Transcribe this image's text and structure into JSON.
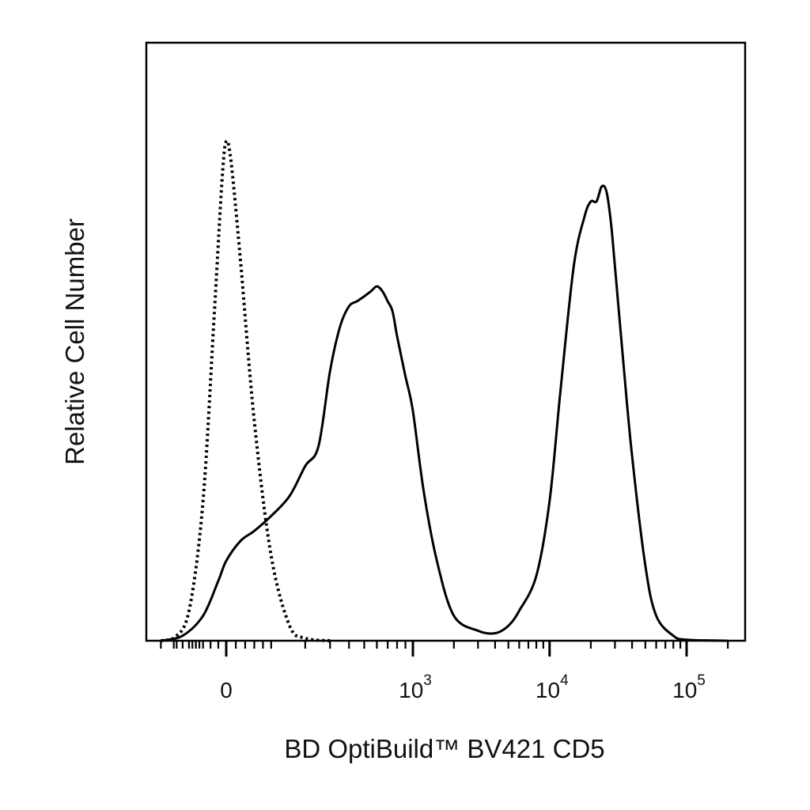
{
  "chart_data": {
    "type": "line",
    "title": "",
    "xlabel": "BD OptiBuild™ BV421 CD5",
    "ylabel": "Relative Cell Number",
    "x_scale": "biexponential",
    "x_tick_labels": [
      {
        "base": "0",
        "exp": "",
        "value": 0
      },
      {
        "base": "10",
        "exp": "3",
        "value": 1000
      },
      {
        "base": "10",
        "exp": "4",
        "value": 10000
      },
      {
        "base": "10",
        "exp": "5",
        "value": 100000
      }
    ],
    "xlim": [
      -300,
      250000
    ],
    "ylim": [
      0,
      100
    ],
    "grid": false,
    "legend": "none",
    "colors": {
      "axis": "#000000",
      "series": "#000000"
    },
    "series": [
      {
        "style": "dotted",
        "x": [
          -200,
          -150,
          -100,
          -60,
          -30,
          -10,
          0,
          10,
          30,
          60,
          100,
          150,
          200,
          300
        ],
        "y": [
          0,
          0.5,
          6,
          28,
          66,
          93,
          100,
          96,
          76,
          44,
          17,
          3,
          0.5,
          0
        ]
      },
      {
        "style": "solid",
        "x": [
          -200,
          -120,
          -60,
          -20,
          0,
          30,
          60,
          100,
          150,
          200,
          250,
          300,
          350,
          400,
          450,
          500,
          550,
          600,
          650,
          700,
          750,
          800,
          900,
          1000,
          1200,
          1500,
          2000,
          3000,
          4000,
          5000,
          6000,
          8000,
          10000,
          12000,
          15000,
          18000,
          20000,
          22000,
          24000,
          26000,
          28000,
          30000,
          35000,
          40000,
          50000,
          60000,
          80000,
          100000,
          200000
        ],
        "y": [
          0,
          1,
          5,
          12,
          16,
          20,
          22,
          25,
          29,
          35,
          39,
          54,
          63,
          67,
          68,
          69,
          70,
          71,
          70,
          68,
          66,
          61,
          53,
          46,
          30,
          16,
          5,
          2,
          1.5,
          3,
          6,
          13,
          28,
          50,
          75,
          85,
          88,
          88,
          91,
          90,
          84,
          75,
          54,
          37,
          15,
          5,
          1,
          0.2,
          0
        ]
      }
    ]
  }
}
